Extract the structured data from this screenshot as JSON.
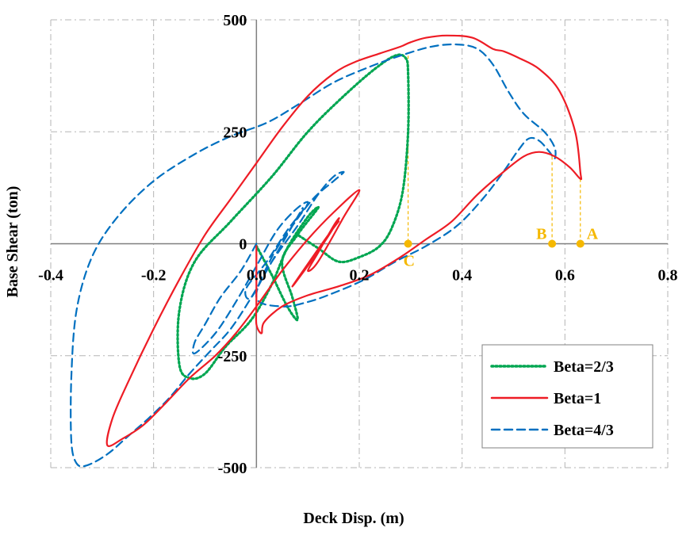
{
  "chart_data": {
    "type": "line",
    "title": "",
    "xlabel": "Deck Disp. (m)",
    "ylabel": "Base Shear (ton)",
    "xlim": [
      -0.4,
      0.8
    ],
    "ylim": [
      -500,
      500
    ],
    "x_ticks": [
      "-0.4",
      "-0.2",
      "0.0",
      "0.2",
      "0.4",
      "0.6",
      "0.8"
    ],
    "x_tick_values": [
      -0.4,
      -0.2,
      0.0,
      0.2,
      0.4,
      0.6,
      0.8
    ],
    "y_ticks": [
      "-500",
      "-250",
      "0",
      "250",
      "500"
    ],
    "y_tick_values": [
      -500,
      -250,
      0,
      250,
      500
    ],
    "grid": true,
    "legend_position": "bottom-right",
    "series": [
      {
        "name": "Beta=2/3",
        "color": "#00a651",
        "style": "dotted",
        "points": [
          [
            0.0,
            -5
          ],
          [
            0.03,
            -70
          ],
          [
            0.06,
            -140
          ],
          [
            0.08,
            -170
          ],
          [
            0.07,
            -120
          ],
          [
            0.05,
            -40
          ],
          [
            0.08,
            20
          ],
          [
            0.12,
            80
          ],
          [
            0.1,
            60
          ],
          [
            0.06,
            -10
          ],
          [
            0.03,
            -90
          ],
          [
            -0.01,
            -170
          ],
          [
            -0.06,
            -230
          ],
          [
            -0.1,
            -290
          ],
          [
            -0.13,
            -300
          ],
          [
            -0.15,
            -270
          ],
          [
            -0.15,
            -150
          ],
          [
            -0.12,
            -40
          ],
          [
            -0.05,
            50
          ],
          [
            0.03,
            150
          ],
          [
            0.1,
            250
          ],
          [
            0.17,
            330
          ],
          [
            0.23,
            390
          ],
          [
            0.27,
            420
          ],
          [
            0.29,
            415
          ],
          [
            0.295,
            380
          ],
          [
            0.295,
            250
          ],
          [
            0.285,
            120
          ],
          [
            0.265,
            40
          ],
          [
            0.24,
            -5
          ],
          [
            0.2,
            -30
          ],
          [
            0.16,
            -40
          ],
          [
            0.12,
            -10
          ],
          [
            0.08,
            20
          ]
        ]
      },
      {
        "name": "Beta=1",
        "color": "#ee1c25",
        "style": "solid",
        "points": [
          [
            0.0,
            -5
          ],
          [
            0.0,
            -130
          ],
          [
            0.0,
            -180
          ],
          [
            0.01,
            -200
          ],
          [
            0.015,
            -175
          ],
          [
            0.05,
            -140
          ],
          [
            0.1,
            -115
          ],
          [
            0.16,
            -95
          ],
          [
            0.22,
            -70
          ],
          [
            0.28,
            -30
          ],
          [
            0.33,
            10
          ],
          [
            0.38,
            50
          ],
          [
            0.43,
            110
          ],
          [
            0.48,
            160
          ],
          [
            0.52,
            195
          ],
          [
            0.55,
            205
          ],
          [
            0.58,
            195
          ],
          [
            0.61,
            170
          ],
          [
            0.63,
            145
          ],
          [
            0.63,
            160
          ],
          [
            0.62,
            250
          ],
          [
            0.59,
            340
          ],
          [
            0.55,
            390
          ],
          [
            0.51,
            415
          ],
          [
            0.48,
            430
          ],
          [
            0.46,
            435
          ],
          [
            0.42,
            460
          ],
          [
            0.37,
            465
          ],
          [
            0.33,
            460
          ],
          [
            0.3,
            450
          ],
          [
            0.28,
            440
          ],
          [
            0.24,
            425
          ],
          [
            0.19,
            405
          ],
          [
            0.15,
            380
          ],
          [
            0.1,
            330
          ],
          [
            0.05,
            260
          ],
          [
            0.0,
            180
          ],
          [
            -0.05,
            100
          ],
          [
            -0.1,
            20
          ],
          [
            -0.15,
            -80
          ],
          [
            -0.2,
            -190
          ],
          [
            -0.25,
            -310
          ],
          [
            -0.28,
            -390
          ],
          [
            -0.29,
            -450
          ],
          [
            -0.26,
            -435
          ],
          [
            -0.22,
            -405
          ],
          [
            -0.18,
            -360
          ],
          [
            -0.13,
            -300
          ],
          [
            -0.08,
            -250
          ],
          [
            -0.04,
            -200
          ],
          [
            0.0,
            -140
          ],
          [
            0.05,
            -60
          ],
          [
            0.1,
            10
          ],
          [
            0.15,
            70
          ],
          [
            0.2,
            120
          ],
          [
            0.17,
            60
          ],
          [
            0.12,
            -40
          ],
          [
            0.1,
            -60
          ],
          [
            0.12,
            -20
          ],
          [
            0.15,
            40
          ],
          [
            0.16,
            55
          ],
          [
            0.13,
            0
          ],
          [
            0.09,
            -65
          ],
          [
            0.07,
            -95
          ],
          [
            0.1,
            -45
          ],
          [
            0.14,
            20
          ],
          [
            0.16,
            50
          ]
        ]
      },
      {
        "name": "Beta=4/3",
        "color": "#0070c0",
        "style": "dashed",
        "points": [
          [
            0.0,
            0
          ],
          [
            -0.03,
            -60
          ],
          [
            -0.07,
            -120
          ],
          [
            -0.1,
            -180
          ],
          [
            -0.12,
            -220
          ],
          [
            -0.12,
            -245
          ],
          [
            -0.08,
            -200
          ],
          [
            -0.04,
            -130
          ],
          [
            0.0,
            -50
          ],
          [
            0.04,
            30
          ],
          [
            0.08,
            80
          ],
          [
            0.1,
            90
          ],
          [
            0.06,
            30
          ],
          [
            0.02,
            -40
          ],
          [
            -0.02,
            -100
          ],
          [
            -0.01,
            -120
          ],
          [
            0.03,
            -40
          ],
          [
            0.08,
            40
          ],
          [
            0.12,
            110
          ],
          [
            0.15,
            150
          ],
          [
            0.17,
            160
          ],
          [
            0.15,
            140
          ],
          [
            0.11,
            100
          ],
          [
            0.07,
            40
          ],
          [
            0.03,
            -30
          ],
          [
            0.0,
            -120
          ],
          [
            0.05,
            -140
          ],
          [
            0.1,
            -130
          ],
          [
            0.15,
            -110
          ],
          [
            0.21,
            -80
          ],
          [
            0.27,
            -40
          ],
          [
            0.33,
            -5
          ],
          [
            0.39,
            40
          ],
          [
            0.44,
            100
          ],
          [
            0.48,
            160
          ],
          [
            0.51,
            210
          ],
          [
            0.53,
            235
          ],
          [
            0.55,
            230
          ],
          [
            0.57,
            205
          ],
          [
            0.58,
            190
          ],
          [
            0.58,
            215
          ],
          [
            0.56,
            250
          ],
          [
            0.52,
            290
          ],
          [
            0.49,
            340
          ],
          [
            0.46,
            400
          ],
          [
            0.43,
            435
          ],
          [
            0.39,
            445
          ],
          [
            0.34,
            440
          ],
          [
            0.28,
            420
          ],
          [
            0.22,
            395
          ],
          [
            0.15,
            360
          ],
          [
            0.08,
            310
          ],
          [
            0.02,
            270
          ],
          [
            -0.05,
            240
          ],
          [
            -0.12,
            200
          ],
          [
            -0.2,
            140
          ],
          [
            -0.27,
            60
          ],
          [
            -0.32,
            -30
          ],
          [
            -0.35,
            -150
          ],
          [
            -0.36,
            -300
          ],
          [
            -0.36,
            -440
          ],
          [
            -0.35,
            -490
          ],
          [
            -0.33,
            -495
          ],
          [
            -0.29,
            -470
          ],
          [
            -0.25,
            -430
          ],
          [
            -0.21,
            -390
          ],
          [
            -0.17,
            -345
          ],
          [
            -0.13,
            -290
          ],
          [
            -0.09,
            -240
          ],
          [
            -0.05,
            -190
          ],
          [
            -0.01,
            -120
          ],
          [
            0.02,
            -60
          ],
          [
            0.05,
            0
          ],
          [
            0.07,
            40
          ],
          [
            0.09,
            80
          ]
        ]
      }
    ],
    "markers": [
      {
        "label": "A",
        "x": 0.63,
        "y": 0,
        "color": "#f5b800"
      },
      {
        "label": "B",
        "x": 0.575,
        "y": 0,
        "color": "#f5b800"
      },
      {
        "label": "C",
        "x": 0.295,
        "y": 0,
        "color": "#f5b800"
      }
    ]
  }
}
